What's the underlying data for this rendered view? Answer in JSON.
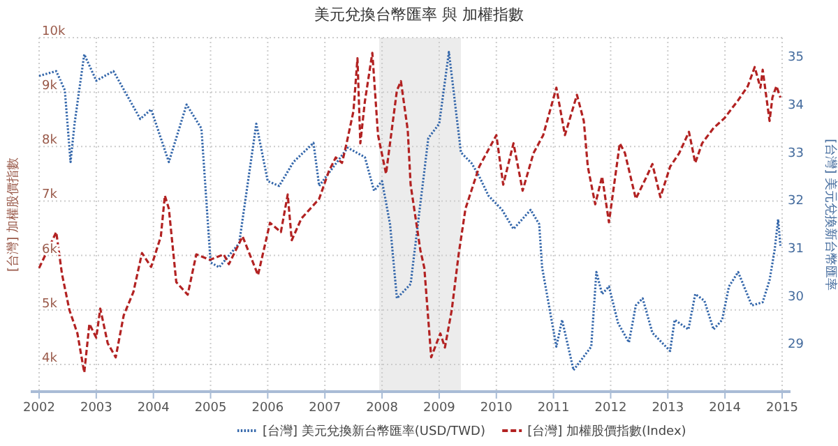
{
  "chart_data": {
    "type": "line",
    "title": "美元兌換台幣匯率 與 加權指數",
    "ylabel": "[台灣] 加權股價指數",
    "y2label": "[台灣] 美元兌換新台幣匯率",
    "xlim": [
      2002,
      2015
    ],
    "xticks": [
      2002,
      2003,
      2004,
      2005,
      2006,
      2007,
      2008,
      2009,
      2010,
      2011,
      2012,
      2013,
      2014,
      2015
    ],
    "ylim": [
      3500,
      10000
    ],
    "yticks": [
      {
        "value": 4000,
        "label": "4k"
      },
      {
        "value": 5000,
        "label": "5k"
      },
      {
        "value": 6000,
        "label": "6k"
      },
      {
        "value": 7000,
        "label": "7k"
      },
      {
        "value": 8000,
        "label": "8k"
      },
      {
        "value": 9000,
        "label": "9k"
      },
      {
        "value": 10000,
        "label": "10k"
      }
    ],
    "y2lim": [
      28,
      35.4
    ],
    "y2ticks": [
      29,
      30,
      31,
      32,
      33,
      34,
      35
    ],
    "grid": true,
    "legend": "bottom",
    "marker": "none",
    "bands": [
      {
        "axis": "x",
        "from": 2007.95,
        "to": 2009.38,
        "color": "#ececec"
      }
    ],
    "series": [
      {
        "name": "[台灣] 美元兌換新台幣匯率(USD/TWD)",
        "color": "#3366aa",
        "axis": "y2",
        "line_style": "dotted",
        "x": [
          2002,
          2002.3,
          2002.45,
          2002.55,
          2002.62,
          2002.79,
          2003.0,
          2003.3,
          2003.77,
          2003.96,
          2004.27,
          2004.58,
          2004.84,
          2005.0,
          2005.15,
          2005.5,
          2005.8,
          2006.0,
          2006.2,
          2006.45,
          2006.8,
          2006.9,
          2007.4,
          2007.7,
          2007.86,
          2008.0,
          2008.14,
          2008.26,
          2008.5,
          2008.81,
          2009.0,
          2009.17,
          2009.38,
          2009.57,
          2009.7,
          2009.86,
          2010.1,
          2010.3,
          2010.6,
          2010.75,
          2010.8,
          2011.05,
          2011.15,
          2011.35,
          2011.66,
          2011.75,
          2011.85,
          2011.97,
          2012.13,
          2012.32,
          2012.44,
          2012.56,
          2012.73,
          2013.04,
          2013.12,
          2013.36,
          2013.48,
          2013.64,
          2013.8,
          2013.95,
          2014.07,
          2014.23,
          2014.47,
          2014.66,
          2014.78,
          2014.87,
          2014.93,
          2014.97
        ],
        "values": [
          34.6,
          34.7,
          34.3,
          32.8,
          33.6,
          35.05,
          34.5,
          34.7,
          33.7,
          33.9,
          32.8,
          34.0,
          33.5,
          30.7,
          30.6,
          31.1,
          33.6,
          32.4,
          32.3,
          32.8,
          33.2,
          32.3,
          33.1,
          32.9,
          32.2,
          32.4,
          31.5,
          29.95,
          30.25,
          33.3,
          33.6,
          35.1,
          33.0,
          32.77,
          32.5,
          32.1,
          31.8,
          31.4,
          31.8,
          31.5,
          30.6,
          28.94,
          29.5,
          28.45,
          28.94,
          30.5,
          30.04,
          30.2,
          29.43,
          29.03,
          29.8,
          29.95,
          29.23,
          28.85,
          29.5,
          29.3,
          30.04,
          29.9,
          29.3,
          29.5,
          30.2,
          30.5,
          29.8,
          29.87,
          30.33,
          30.97,
          31.6,
          31.05
        ]
      },
      {
        "name": "[台灣] 加權股價指數(Index)",
        "color": "#b22222",
        "line_style": "dashed",
        "x": [
          2002,
          2002.3,
          2002.4,
          2002.53,
          2002.67,
          2002.79,
          2002.88,
          2003.0,
          2003.07,
          2003.2,
          2003.34,
          2003.48,
          2003.65,
          2003.8,
          2003.96,
          2004.13,
          2004.2,
          2004.27,
          2004.4,
          2004.6,
          2004.75,
          2004.99,
          2005.23,
          2005.32,
          2005.56,
          2005.83,
          2006.04,
          2006.23,
          2006.35,
          2006.42,
          2006.59,
          2006.9,
          2007.07,
          2007.19,
          2007.3,
          2007.38,
          2007.5,
          2007.57,
          2007.62,
          2007.7,
          2007.83,
          2007.93,
          2008.07,
          2008.26,
          2008.33,
          2008.45,
          2008.5,
          2008.67,
          2008.74,
          2008.86,
          2009.02,
          2009.1,
          2009.22,
          2009.34,
          2009.46,
          2009.7,
          2010.0,
          2010.12,
          2010.3,
          2010.46,
          2010.65,
          2010.82,
          2011.05,
          2011.2,
          2011.41,
          2011.53,
          2011.6,
          2011.73,
          2011.85,
          2011.97,
          2012.16,
          2012.25,
          2012.44,
          2012.63,
          2012.73,
          2012.87,
          2013.04,
          2013.2,
          2013.37,
          2013.48,
          2013.6,
          2013.8,
          2013.99,
          2014.23,
          2014.4,
          2014.52,
          2014.62,
          2014.66,
          2014.78,
          2014.83,
          2014.9,
          2014.97
        ],
        "values": [
          5770,
          6430,
          5660,
          5000,
          4570,
          3850,
          4745,
          4490,
          5025,
          4390,
          4130,
          4900,
          5330,
          6045,
          5790,
          6350,
          7100,
          6860,
          5510,
          5280,
          6020,
          5920,
          6020,
          5840,
          6350,
          5640,
          6600,
          6430,
          7120,
          6280,
          6680,
          7040,
          7550,
          7800,
          7700,
          8060,
          8650,
          9620,
          8060,
          8830,
          9720,
          8210,
          7500,
          9030,
          9200,
          8300,
          7300,
          6100,
          5770,
          4130,
          4570,
          4310,
          5000,
          6020,
          6860,
          7630,
          8210,
          7300,
          8060,
          7190,
          7880,
          8210,
          9080,
          8210,
          8950,
          8470,
          7630,
          6940,
          7450,
          6610,
          8060,
          7880,
          7040,
          7450,
          7680,
          7070,
          7630,
          7880,
          8270,
          7700,
          8060,
          8340,
          8520,
          8850,
          9110,
          9460,
          9080,
          9410,
          8470,
          8900,
          9110,
          8900
        ]
      }
    ]
  }
}
